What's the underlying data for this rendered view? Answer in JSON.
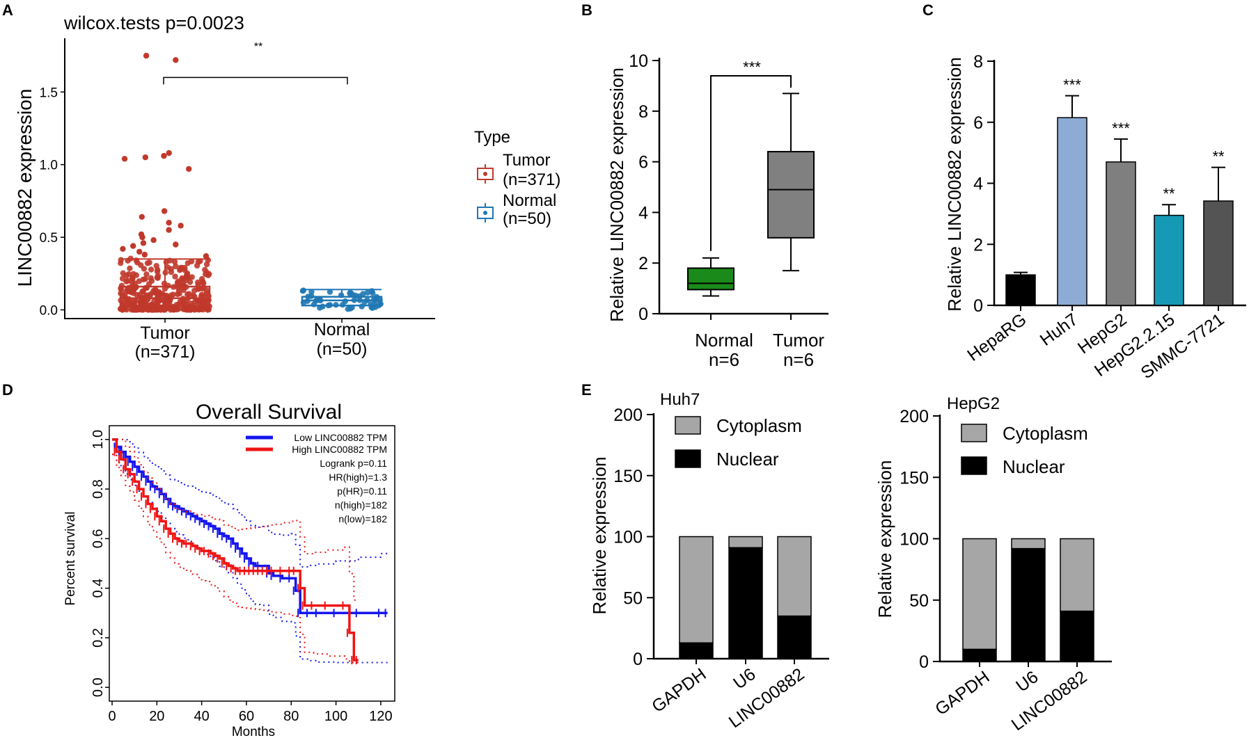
{
  "figure": {
    "panel_letters": [
      "A",
      "B",
      "C",
      "D",
      "E"
    ]
  },
  "chart_data": [
    {
      "id": "A",
      "type": "box",
      "title": "wilcox.tests p=0.0023",
      "ylabel": "LINC00882 expression",
      "ylim": [
        -0.06,
        1.87
      ],
      "yticks": [
        0.0,
        0.5,
        1.0,
        1.5
      ],
      "ytick_labels": [
        "0.0",
        "0.5",
        "1.0",
        "1.5"
      ],
      "groups": [
        {
          "name": "Tumor",
          "n_label": "(n=371)",
          "color": "#c0392b",
          "q1": 0.03,
          "median": 0.08,
          "q3": 0.16,
          "whisker_low": 0.0,
          "whisker_high": 0.35
        },
        {
          "name": "Normal",
          "n_label": "(n=50)",
          "color": "#1f77b4",
          "q1": 0.03,
          "median": 0.065,
          "q3": 0.09,
          "whisker_low": 0.0,
          "whisker_high": 0.14
        }
      ],
      "outliers_tumor": [
        1.75,
        1.72,
        1.08,
        1.06,
        1.05,
        1.04,
        0.97,
        0.68,
        0.64,
        0.6,
        0.58,
        0.55,
        0.52,
        0.5,
        0.48,
        0.46,
        0.45,
        0.44,
        0.42,
        0.4,
        0.38,
        0.37
      ],
      "significance": "**",
      "legend": {
        "title": "Type",
        "entries": [
          {
            "label": "Tumor",
            "n_label": "(n=371)",
            "color": "#c0392b"
          },
          {
            "label": "Normal",
            "n_label": "(n=50)",
            "color": "#1f77b4"
          }
        ]
      }
    },
    {
      "id": "B",
      "type": "box",
      "ylabel": "Relative LINC00882 expression",
      "ylim": [
        0,
        10
      ],
      "yticks": [
        0,
        2,
        4,
        6,
        8,
        10
      ],
      "groups": [
        {
          "name": "Normal",
          "n_label": "n=6",
          "color": "#1a8a1a",
          "min": 0.7,
          "q1": 0.95,
          "median": 1.2,
          "q3": 1.8,
          "max": 2.2
        },
        {
          "name": "Tumor",
          "n_label": "n=6",
          "color": "#808080",
          "min": 1.7,
          "q1": 3.0,
          "median": 4.9,
          "q3": 6.4,
          "max": 8.7
        }
      ],
      "significance": "***"
    },
    {
      "id": "C",
      "type": "bar",
      "ylabel": "Relative LINC00882 expression",
      "ylim": [
        0,
        8
      ],
      "yticks": [
        0,
        2,
        4,
        6,
        8
      ],
      "categories": [
        "HepaRG",
        "Huh7",
        "HepG2",
        "HepG2.2.15",
        "SMMC-7721"
      ],
      "values": [
        1.0,
        6.15,
        4.7,
        2.95,
        3.42
      ],
      "errors": [
        0.08,
        0.72,
        0.75,
        0.35,
        1.1
      ],
      "colors": [
        "#000000",
        "#8eabd6",
        "#7f7f7f",
        "#1699b5",
        "#545454"
      ],
      "annotations": [
        "",
        "***",
        "***",
        "**",
        "**"
      ]
    },
    {
      "id": "D",
      "type": "line",
      "title": "Overall Survival",
      "xlabel": "Months",
      "ylabel": "Percent survival",
      "xlim": [
        0,
        125
      ],
      "ylim": [
        -0.05,
        1.05
      ],
      "xticks": [
        0,
        20,
        40,
        60,
        80,
        100,
        120
      ],
      "yticks": [
        0.0,
        0.2,
        0.4,
        0.6,
        0.8,
        1.0
      ],
      "ytick_labels": [
        "0.0",
        "0.2",
        "0.4",
        "0.6",
        "0.8",
        "1.0"
      ],
      "series": [
        {
          "name": "Low LINC00882 TPM",
          "color": "#1515ee",
          "x": [
            0,
            2,
            4,
            6,
            8,
            10,
            12,
            14,
            16,
            18,
            20,
            22,
            24,
            26,
            28,
            30,
            32,
            34,
            36,
            38,
            40,
            42,
            44,
            46,
            48,
            50,
            52,
            54,
            56,
            58,
            60,
            62,
            64,
            66,
            70,
            72,
            76,
            80,
            82,
            84,
            88,
            92,
            100,
            110,
            120,
            123
          ],
          "y": [
            1.0,
            0.97,
            0.95,
            0.93,
            0.91,
            0.89,
            0.87,
            0.85,
            0.83,
            0.81,
            0.8,
            0.78,
            0.76,
            0.74,
            0.73,
            0.72,
            0.71,
            0.7,
            0.69,
            0.68,
            0.67,
            0.66,
            0.65,
            0.64,
            0.62,
            0.61,
            0.6,
            0.58,
            0.56,
            0.54,
            0.52,
            0.5,
            0.49,
            0.49,
            0.46,
            0.45,
            0.44,
            0.44,
            0.39,
            0.3,
            0.3,
            0.3,
            0.3,
            0.3,
            0.3,
            0.3
          ]
        },
        {
          "name": "High LINC00882 TPM",
          "color": "#ee1515",
          "x": [
            0,
            2,
            4,
            6,
            8,
            10,
            12,
            14,
            16,
            18,
            20,
            22,
            24,
            26,
            28,
            30,
            32,
            34,
            36,
            38,
            40,
            42,
            44,
            46,
            48,
            50,
            52,
            54,
            56,
            58,
            60,
            62,
            64,
            66,
            68,
            70,
            72,
            76,
            80,
            82,
            84,
            86,
            90,
            96,
            104,
            106,
            108,
            110
          ],
          "y": [
            1.0,
            0.95,
            0.92,
            0.88,
            0.86,
            0.83,
            0.8,
            0.77,
            0.74,
            0.72,
            0.69,
            0.67,
            0.64,
            0.62,
            0.6,
            0.59,
            0.58,
            0.58,
            0.57,
            0.56,
            0.55,
            0.55,
            0.54,
            0.53,
            0.52,
            0.5,
            0.49,
            0.48,
            0.47,
            0.47,
            0.47,
            0.47,
            0.47,
            0.47,
            0.47,
            0.47,
            0.47,
            0.47,
            0.47,
            0.47,
            0.4,
            0.33,
            0.33,
            0.33,
            0.33,
            0.22,
            0.11,
            0.11
          ]
        }
      ],
      "stats": [
        "Logrank p=0.11",
        "HR(high)=1.3",
        "p(HR)=0.11",
        "n(high)=182",
        "n(low)=182"
      ]
    },
    {
      "id": "E1",
      "type": "bar",
      "stacked": true,
      "title": "Huh7",
      "ylabel": "Relative  expression",
      "ylim": [
        0,
        200
      ],
      "yticks": [
        0,
        50,
        100,
        150,
        200
      ],
      "categories": [
        "GAPDH",
        "U6",
        "LINC00882"
      ],
      "series": [
        {
          "name": "Nuclear",
          "color": "#000000",
          "values": [
            13,
            91,
            35
          ]
        },
        {
          "name": "Cytoplasm",
          "color": "#a6a6a6",
          "values": [
            87,
            9,
            65
          ]
        }
      ]
    },
    {
      "id": "E2",
      "type": "bar",
      "stacked": true,
      "title": "HepG2",
      "ylabel": "Relative expression",
      "ylim": [
        0,
        200
      ],
      "yticks": [
        0,
        50,
        100,
        150,
        200
      ],
      "categories": [
        "GAPDH",
        "U6",
        "LINC00882"
      ],
      "series": [
        {
          "name": "Nuclear",
          "color": "#000000",
          "values": [
            10,
            92,
            41
          ]
        },
        {
          "name": "Cytoplasm",
          "color": "#a6a6a6",
          "values": [
            90,
            8,
            59
          ]
        }
      ]
    }
  ]
}
